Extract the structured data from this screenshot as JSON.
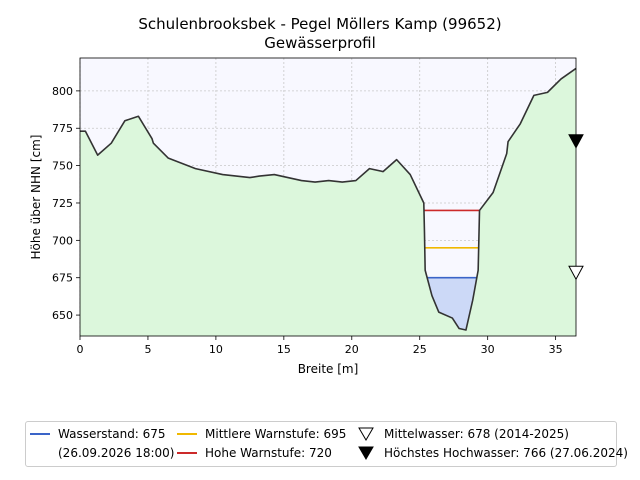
{
  "title_line1": "Schulenbrooksbek - Pegel Möllers Kamp (99652)",
  "title_line2": "Gewässerprofil",
  "chart_data": {
    "type": "area",
    "xlabel": "Breite [m]",
    "ylabel": "Höhe über NHN [cm]",
    "xlim": [
      0,
      36.5
    ],
    "ylim": [
      636,
      822
    ],
    "xticks": [
      0,
      5,
      10,
      15,
      20,
      25,
      30,
      35
    ],
    "yticks": [
      650,
      675,
      700,
      725,
      750,
      775,
      800
    ],
    "grid": true,
    "profile": {
      "x": [
        0,
        0.4,
        1.3,
        2.3,
        3.3,
        4.3,
        5.3,
        5.4,
        6.5,
        8.5,
        10.5,
        12.5,
        13.2,
        14.3,
        15.3,
        16.3,
        17.3,
        18.3,
        19.3,
        20.3,
        21.3,
        22.3,
        23.3,
        24.3,
        25.3,
        25.35,
        25.4,
        25.9,
        26.4,
        27.4,
        27.9,
        28.4,
        28.9,
        29.3,
        29.4,
        30.4,
        31.4,
        31.5,
        32.4,
        33.4,
        34.4,
        35.4,
        36.5
      ],
      "y": [
        773,
        773,
        757,
        765,
        780,
        783,
        768,
        765,
        755,
        748,
        744,
        742,
        743,
        744,
        742,
        740,
        739,
        740,
        739,
        740,
        748,
        746,
        754,
        744,
        725,
        705,
        680,
        663,
        652,
        648,
        641,
        640,
        660,
        680,
        720,
        732,
        758,
        766,
        778,
        797,
        799,
        808,
        815
      ]
    },
    "levels": {
      "wasserstand": 675,
      "mittlere_warnstufe": 695,
      "hohe_warnstufe": 720
    },
    "markers": {
      "mittelwasser": {
        "x": 36.5,
        "y": 678
      },
      "hoechstes_hochwasser": {
        "x": 36.5,
        "y": 766
      }
    },
    "colors": {
      "ground": "#dcf7dc",
      "air": "#f8f8ff",
      "water": "#ccd9f7",
      "profile_line": "#333333",
      "wasserstand": "#3a64c8",
      "mittlere": "#f0b800",
      "hohe": "#cc2a2a"
    }
  },
  "legend": {
    "wasserstand": "Wasserstand: 675",
    "wasserstand_date": "(26.09.2026 18:00)",
    "mittlere": "Mittlere Warnstufe: 695",
    "hohe": "Hohe Warnstufe: 720",
    "mittelwasser": "Mittelwasser: 678 (2014-2025)",
    "hochwasser": "Höchstes Hochwasser: 766 (27.06.2024)"
  }
}
